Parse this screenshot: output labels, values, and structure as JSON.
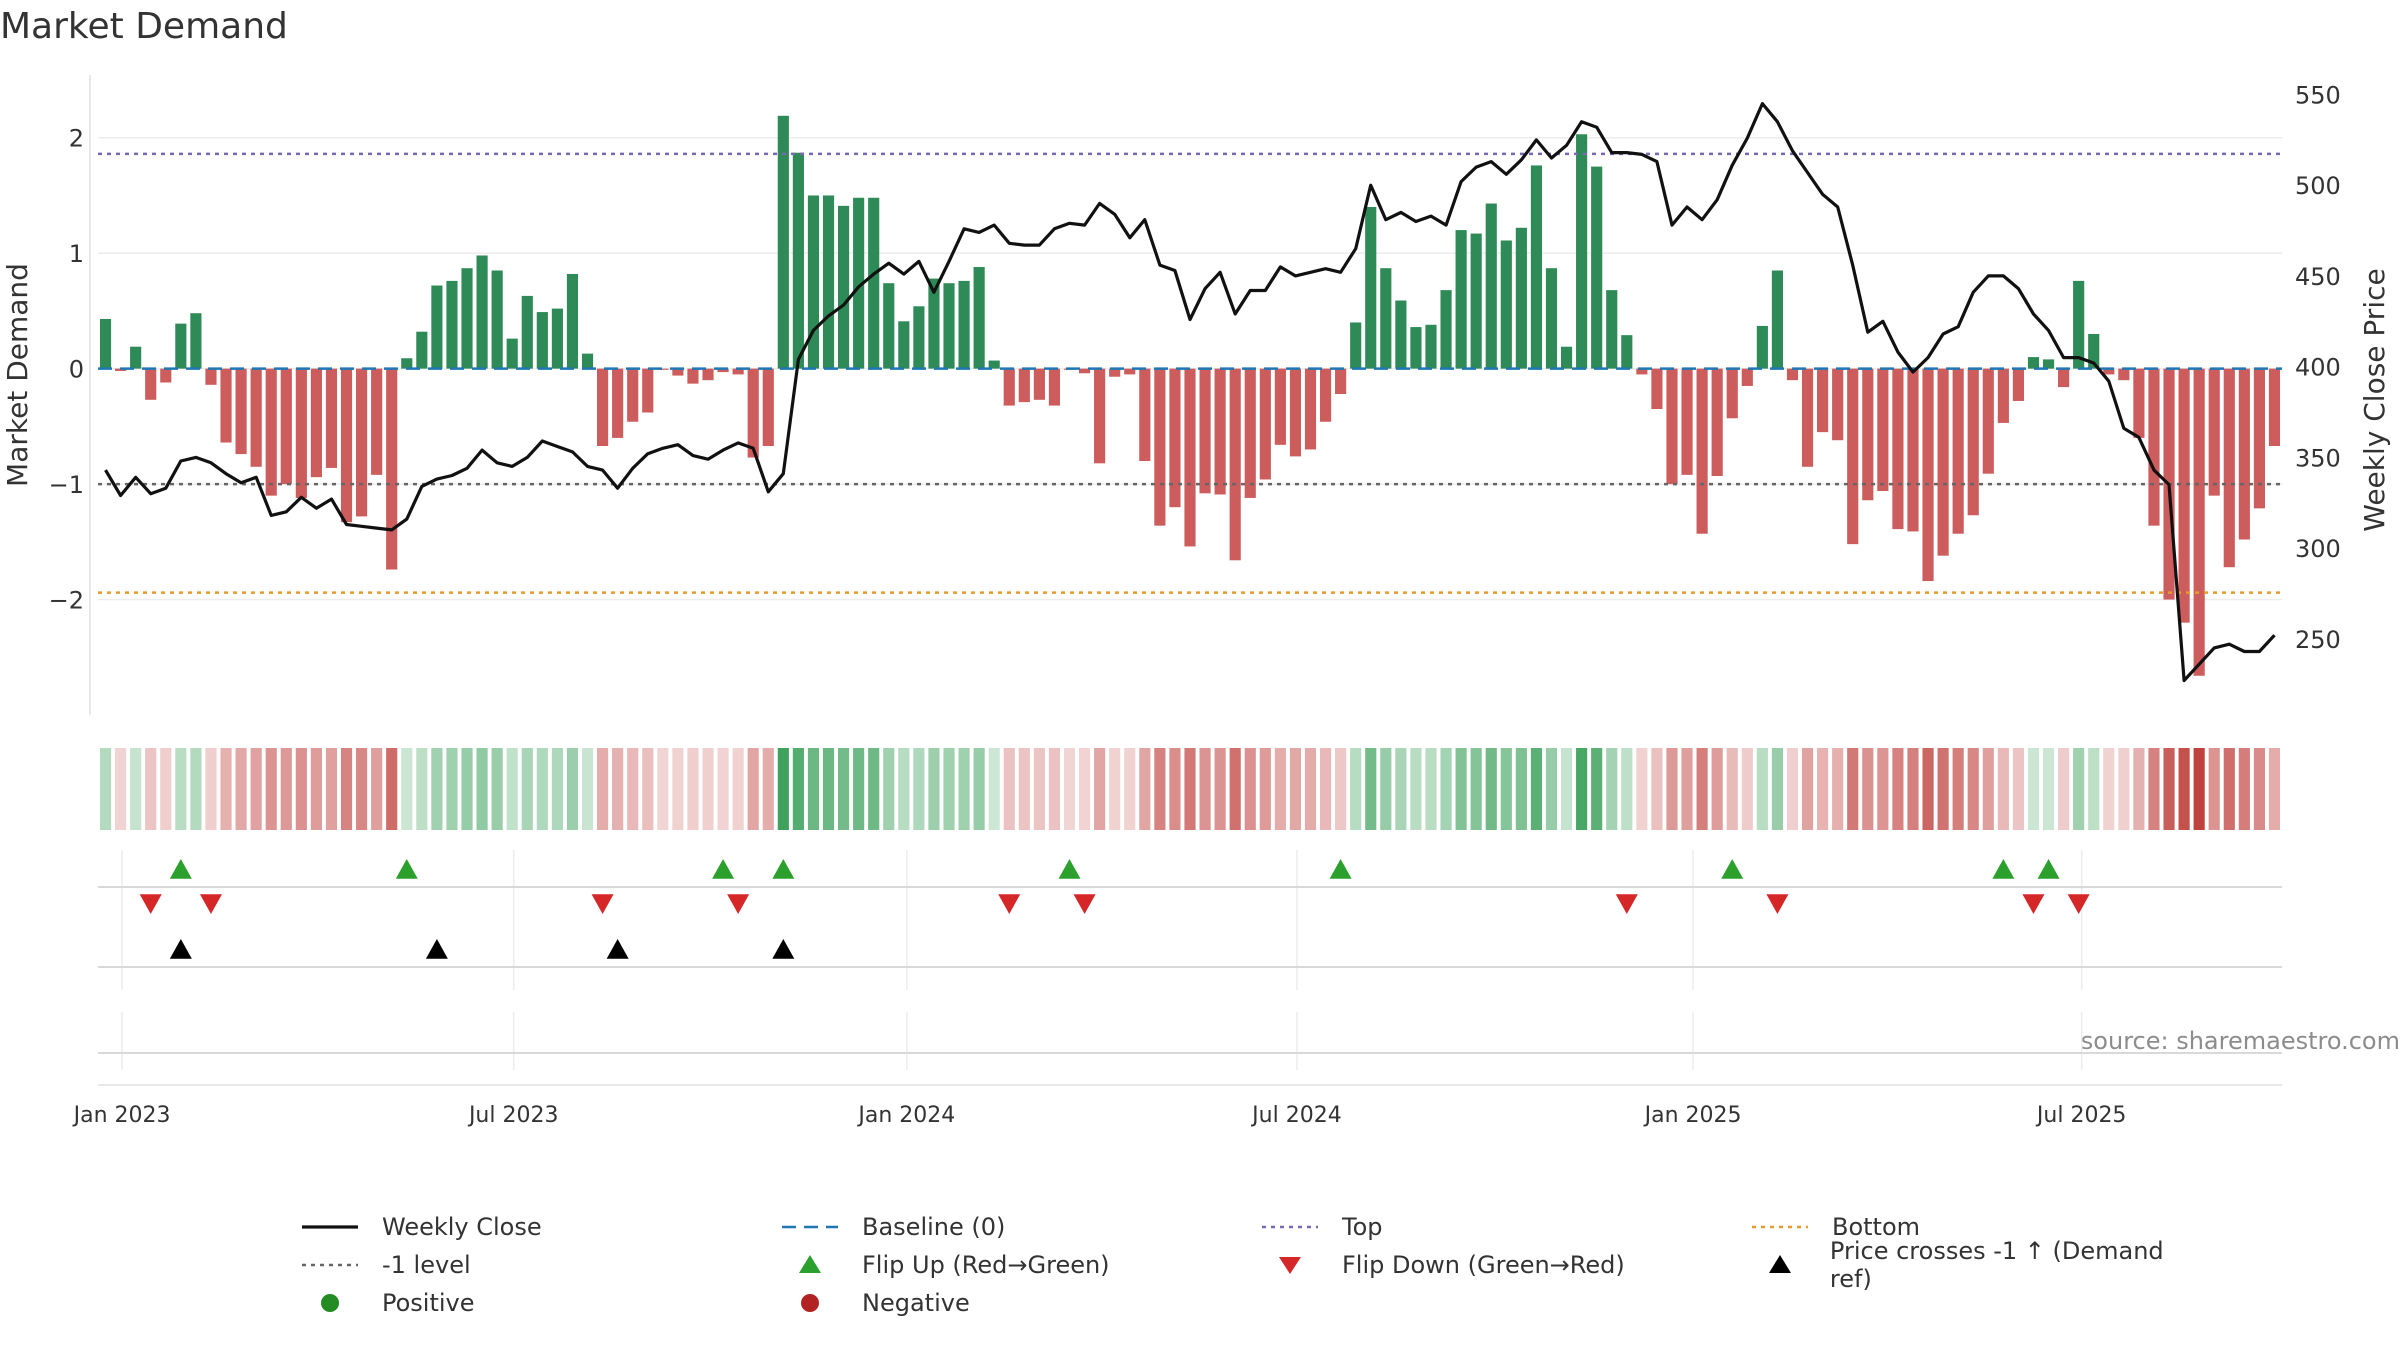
{
  "chart_data": {
    "type": "bar+line",
    "title": "Market Demand",
    "ylabel_left": "Market Demand",
    "ylabel_right": "Weekly Close Price",
    "source": "source: sharemaestro.com",
    "ylim_left": [
      -3.0,
      2.5
    ],
    "ylim_right": [
      208,
      558
    ],
    "y_ticks_left": [
      {
        "v": 2,
        "label": "2"
      },
      {
        "v": 1,
        "label": "1"
      },
      {
        "v": 0,
        "label": "0"
      },
      {
        "v": -1,
        "label": "−1"
      },
      {
        "v": -2,
        "label": "−2"
      }
    ],
    "y_ticks_right": [
      {
        "v": 550,
        "label": "550"
      },
      {
        "v": 500,
        "label": "500"
      },
      {
        "v": 450,
        "label": "450"
      },
      {
        "v": 400,
        "label": "400"
      },
      {
        "v": 350,
        "label": "350"
      },
      {
        "v": 300,
        "label": "300"
      },
      {
        "v": 250,
        "label": "250"
      }
    ],
    "x_ticks": [
      {
        "week": 1.6,
        "label": "Jan 2023"
      },
      {
        "week": 27.6,
        "label": "Jul 2023"
      },
      {
        "week": 53.7,
        "label": "Jan 2024"
      },
      {
        "week": 79.6,
        "label": "Jul 2024"
      },
      {
        "week": 105.9,
        "label": "Jan 2025"
      },
      {
        "week": 131.7,
        "label": "Jul 2025"
      }
    ],
    "reference_levels": {
      "top": 1.86,
      "bottom": -1.94,
      "minus_one": -1.0,
      "baseline": 0
    },
    "demand": [
      0.43,
      -0.02,
      0.19,
      -0.27,
      -0.12,
      0.39,
      0.48,
      -0.14,
      -0.64,
      -0.74,
      -0.85,
      -1.1,
      -1.0,
      -1.12,
      -0.94,
      -0.86,
      -1.33,
      -1.28,
      -0.92,
      -1.74,
      0.09,
      0.32,
      0.72,
      0.76,
      0.87,
      0.98,
      0.85,
      0.26,
      0.63,
      0.49,
      0.52,
      0.82,
      0.13,
      -0.67,
      -0.6,
      -0.46,
      -0.38,
      -0.01,
      -0.06,
      -0.13,
      -0.1,
      -0.03,
      -0.05,
      -0.77,
      -0.67,
      2.19,
      1.87,
      1.5,
      1.5,
      1.41,
      1.48,
      1.48,
      0.74,
      0.41,
      0.54,
      0.78,
      0.74,
      0.76,
      0.88,
      0.07,
      -0.32,
      -0.29,
      -0.27,
      -0.32,
      -0.01,
      -0.04,
      -0.82,
      -0.07,
      -0.05,
      -0.8,
      -1.36,
      -1.2,
      -1.54,
      -1.08,
      -1.09,
      -1.66,
      -1.12,
      -0.96,
      -0.66,
      -0.76,
      -0.7,
      -0.46,
      -0.22,
      0.4,
      1.4,
      0.87,
      0.59,
      0.36,
      0.38,
      0.68,
      1.2,
      1.17,
      1.43,
      1.11,
      1.22,
      1.76,
      0.87,
      0.19,
      2.03,
      1.75,
      0.68,
      0.29,
      -0.05,
      -0.35,
      -1.0,
      -0.92,
      -1.43,
      -0.93,
      -0.43,
      -0.15,
      0.37,
      0.85,
      -0.1,
      -0.85,
      -0.55,
      -0.62,
      -1.52,
      -1.14,
      -1.06,
      -1.39,
      -1.41,
      -1.84,
      -1.62,
      -1.43,
      -1.27,
      -0.91,
      -0.47,
      -0.28,
      0.1,
      0.08,
      -0.16,
      0.76,
      0.3,
      -0.05,
      -0.1,
      -0.6,
      -1.36,
      -2.0,
      -2.2,
      -2.66,
      -1.1,
      -1.72,
      -1.48,
      -1.21,
      -0.67
    ],
    "weekly_close": [
      343,
      329,
      339,
      330,
      333,
      348,
      350,
      347,
      341,
      336,
      339,
      318,
      320,
      328,
      322,
      327,
      313,
      312,
      311,
      310,
      316,
      334,
      338,
      340,
      344,
      354,
      347,
      345,
      350,
      359,
      356,
      353,
      345,
      343,
      333,
      344,
      352,
      355,
      357,
      351,
      349,
      354,
      358,
      355,
      331,
      341,
      404,
      420,
      428,
      434,
      444,
      451,
      457,
      451,
      458,
      441,
      458,
      476,
      474,
      478,
      468,
      467,
      467,
      476,
      479,
      478,
      490,
      484,
      471,
      481,
      456,
      453,
      426,
      443,
      452,
      429,
      442,
      442,
      455,
      450,
      452,
      454,
      452,
      465,
      500,
      481,
      485,
      480,
      483,
      478,
      502,
      510,
      513,
      506,
      514,
      525,
      515,
      522,
      535,
      532,
      518,
      518,
      517,
      513,
      478,
      488,
      481,
      492,
      511,
      526,
      545,
      535,
      519,
      507,
      495,
      488,
      456,
      419,
      425,
      408,
      397,
      405,
      418,
      422,
      441,
      450,
      450,
      443,
      429,
      420,
      405,
      405,
      402,
      392,
      366,
      361,
      343,
      335,
      227,
      236,
      245,
      247,
      243,
      243,
      252
    ],
    "flip_up_weeks": [
      5,
      20,
      41,
      45,
      64,
      82,
      108,
      126,
      129
    ],
    "flip_down_weeks": [
      3,
      7,
      33,
      42,
      60,
      65,
      101,
      111,
      128,
      131
    ],
    "price_cross_weeks": [
      5,
      22,
      34,
      45
    ],
    "colors": {
      "positive_bar": "#2e8b57",
      "negative_bar": "#cd5c5c",
      "price_line": "#111111",
      "baseline": "#1f77b4",
      "top": "#7b68b5",
      "bottom": "#e69b2c",
      "minus_one": "#666666",
      "flip_up": "#2ca02c",
      "flip_down": "#d62728",
      "price_cross": "#000000",
      "positive_dot": "#228b22",
      "negative_dot": "#b22222",
      "tile_green": "#2e9a4f",
      "tile_red": "#c0423e"
    }
  },
  "legend": [
    {
      "key": "weekly_close",
      "label": "Weekly Close",
      "glyph": "solid-line",
      "color": "#111111"
    },
    {
      "key": "baseline",
      "label": "Baseline (0)",
      "glyph": "dash-line",
      "color": "#1f77b4"
    },
    {
      "key": "top",
      "label": "Top",
      "glyph": "dot-line",
      "color": "#7b68b5"
    },
    {
      "key": "bottom",
      "label": "Bottom",
      "glyph": "dot-line",
      "color": "#e69b2c"
    },
    {
      "key": "minus_one",
      "label": "-1 level",
      "glyph": "dot-line",
      "color": "#666666"
    },
    {
      "key": "flip_up",
      "label": "Flip Up (Red→Green)",
      "glyph": "triangle-up",
      "color": "#2ca02c"
    },
    {
      "key": "flip_down",
      "label": "Flip Down (Green→Red)",
      "glyph": "triangle-down",
      "color": "#d62728"
    },
    {
      "key": "price_cross",
      "label": "Price crosses -1 ↑ (Demand ref)",
      "glyph": "triangle-up",
      "color": "#000000"
    },
    {
      "key": "positive",
      "label": "Positive",
      "glyph": "circle",
      "color": "#228b22"
    },
    {
      "key": "negative",
      "label": "Negative",
      "glyph": "circle",
      "color": "#b22222"
    }
  ]
}
